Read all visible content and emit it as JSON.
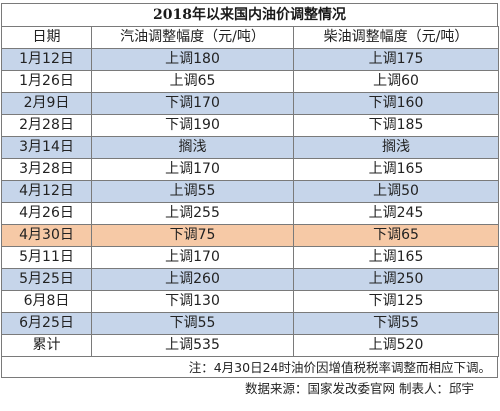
{
  "title": "2018年以来国内油价调整情况",
  "headers": [
    "日期",
    "汽油调整幅度（元/吨）",
    "柴油调整幅度（元/吨）"
  ],
  "rows": [
    {
      "date": "1月12日",
      "gasoline": "上调180",
      "diesel": "上调175",
      "highlight": "blue"
    },
    {
      "date": "1月26日",
      "gasoline": "上调65",
      "diesel": "上调60",
      "highlight": "white"
    },
    {
      "date": "2月9日",
      "gasoline": "下调170",
      "diesel": "下调160",
      "highlight": "blue"
    },
    {
      "date": "2月28日",
      "gasoline": "下调190",
      "diesel": "下调185",
      "highlight": "white"
    },
    {
      "date": "3月14日",
      "gasoline": "搁浅",
      "diesel": "搁浅",
      "highlight": "blue"
    },
    {
      "date": "3月28日",
      "gasoline": "上调170",
      "diesel": "上调165",
      "highlight": "white"
    },
    {
      "date": "4月12日",
      "gasoline": "上调55",
      "diesel": "上调50",
      "highlight": "blue"
    },
    {
      "date": "4月26日",
      "gasoline": "上调255",
      "diesel": "上调245",
      "highlight": "white"
    },
    {
      "date": "4月30日",
      "gasoline": "下调75",
      "diesel": "下调65",
      "highlight": "orange"
    },
    {
      "date": "5月11日",
      "gasoline": "上调170",
      "diesel": "上调165",
      "highlight": "white"
    },
    {
      "date": "5月25日",
      "gasoline": "上调260",
      "diesel": "上调250",
      "highlight": "blue"
    },
    {
      "date": "6月8日",
      "gasoline": "下调130",
      "diesel": "下调125",
      "highlight": "white"
    },
    {
      "date": "6月25日",
      "gasoline": "下调55",
      "diesel": "下调55",
      "highlight": "blue"
    },
    {
      "date": "累计",
      "gasoline": "上调535",
      "diesel": "上调520",
      "highlight": "white"
    }
  ],
  "note": "注：4月30日24时油价因增值税税率调整而相应下调。",
  "source": "数据来源：国家发改委官网  制表人：邱宇",
  "colors": {
    "blue_row": "#c6d5ea",
    "orange_row": "#f6c9a6",
    "border": "#7a7a7a"
  }
}
